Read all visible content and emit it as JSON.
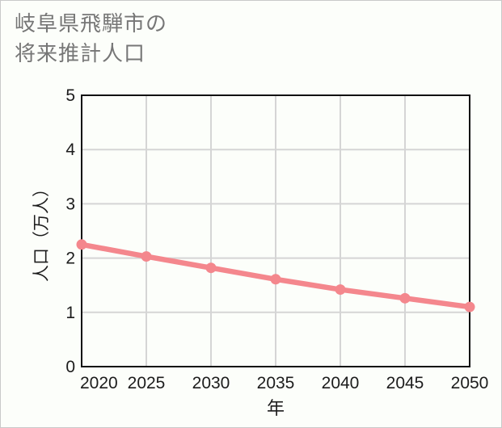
{
  "page": {
    "title_line1": "岐阜県飛騨市の",
    "title_line2": "将来推計人口"
  },
  "chart_data": {
    "type": "line",
    "title": "岐阜県飛騨市の将来推計人口",
    "x": [
      2020,
      2025,
      2030,
      2035,
      2040,
      2045,
      2050
    ],
    "series": [
      {
        "name": "将来推計人口",
        "values": [
          2.25,
          2.03,
          1.82,
          1.61,
          1.42,
          1.26,
          1.1
        ]
      }
    ],
    "xlabel": "年",
    "ylabel": "人口（万人）",
    "xlim": [
      2020,
      2050
    ],
    "ylim": [
      0,
      5
    ],
    "xticks": [
      "2020",
      "2025",
      "2030",
      "2035",
      "2040",
      "2045",
      "2050"
    ],
    "yticks": [
      "0",
      "1",
      "2",
      "3",
      "4",
      "5"
    ],
    "grid": true,
    "legend_position": "none",
    "line_color": "#f4878d",
    "marker_color": "#f4878d",
    "marker_style": "circle",
    "grid_color": "#d5d5d5",
    "axis_color": "#111111",
    "tick_color": "#1c1c1c",
    "title_color": "#767676",
    "background_color": "#fcfefa"
  }
}
